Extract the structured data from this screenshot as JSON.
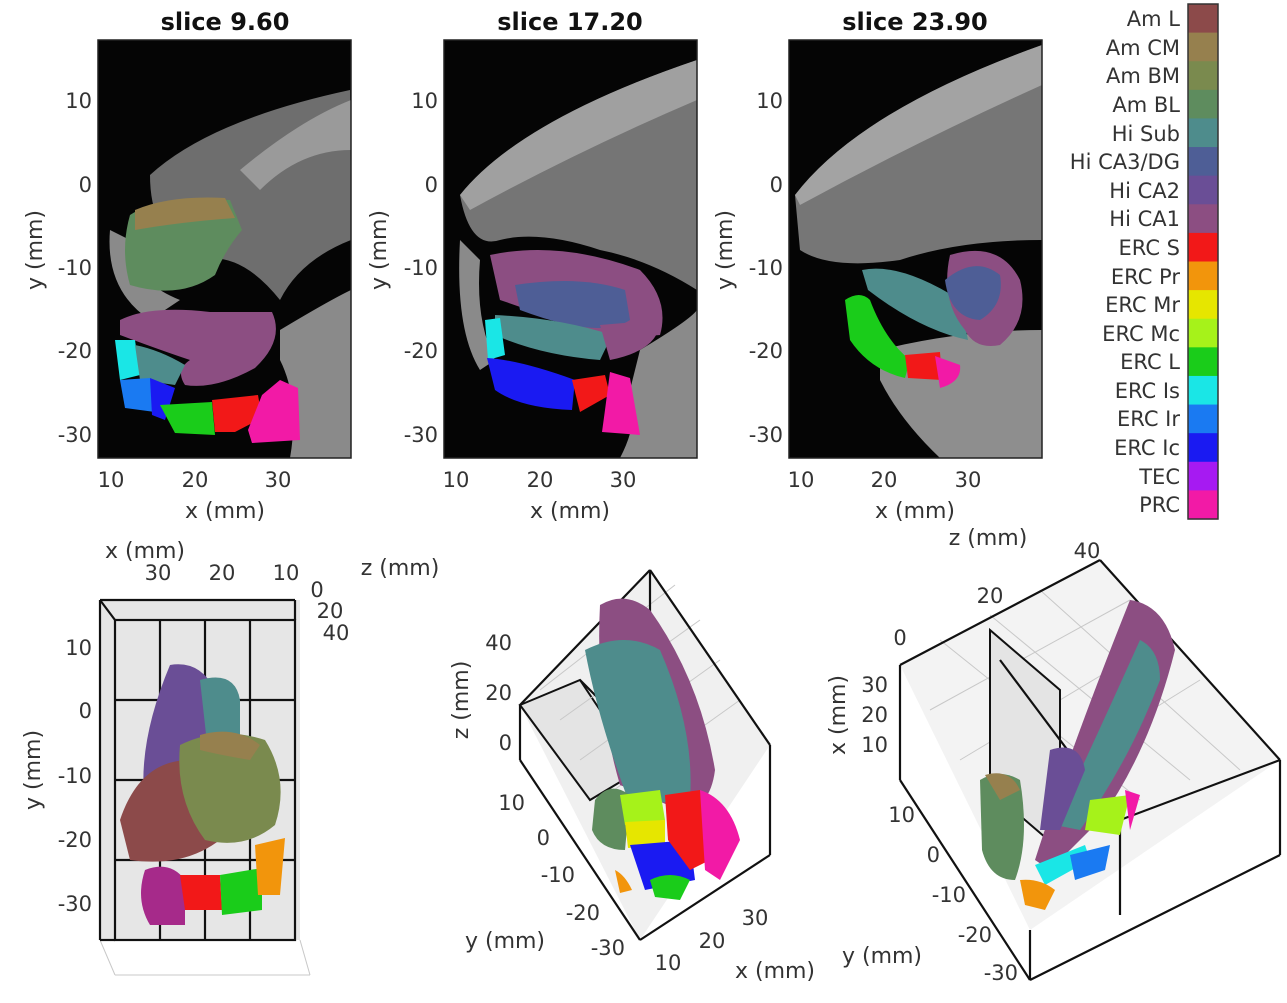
{
  "slice_panels": [
    {
      "title": "slice 9.60"
    },
    {
      "title": "slice 17.20"
    },
    {
      "title": "slice 23.90"
    }
  ],
  "slice_axes": {
    "x_label": "x (mm)",
    "y_label": "y (mm)",
    "x_ticks": [
      "10",
      "20",
      "30"
    ],
    "y_ticks": [
      "10",
      "0",
      "-10",
      "-20",
      "-30"
    ]
  },
  "colorbar": {
    "labels": [
      "Am L",
      "Am CM",
      "Am BM",
      "Am BL",
      "Hi Sub",
      "Hi CA3/DG",
      "Hi CA2",
      "Hi CA1",
      "ERC S",
      "ERC Pr",
      "ERC Mr",
      "ERC Mc",
      "ERC L",
      "ERC Is",
      "ERC Ir",
      "ERC Ic",
      "TEC",
      "PRC"
    ],
    "colors": [
      "#8c4a4a",
      "#96804e",
      "#7a8a4e",
      "#5e8c5e",
      "#4e8c8c",
      "#4e5e96",
      "#6a4e96",
      "#8c4e82",
      "#f21818",
      "#f2950c",
      "#e6e600",
      "#a6f21a",
      "#1acc1a",
      "#1ae6e6",
      "#1a7af2",
      "#1a1af2",
      "#a61af2",
      "#f21aa6"
    ]
  },
  "view3d_left": {
    "x_label": "x (mm)",
    "x_ticks": [
      "30",
      "20",
      "10"
    ],
    "z_label": "z (mm)",
    "z_ticks": [
      "0",
      "20",
      "40"
    ],
    "y_label": "y (mm)",
    "y_ticks": [
      "10",
      "0",
      "-10",
      "-20",
      "-30"
    ]
  },
  "view3d_mid": {
    "z_label": "z (mm)",
    "z_ticks": [
      "40",
      "20",
      "0"
    ],
    "y_label": "y (mm)",
    "y_ticks": [
      "10",
      "0",
      "-10",
      "-20",
      "-30"
    ],
    "x_label": "x (mm)",
    "x_ticks": [
      "10",
      "20",
      "30"
    ]
  },
  "view3d_right": {
    "z_label": "z (mm)",
    "z_ticks": [
      "0",
      "20",
      "40"
    ],
    "x_label": "x (mm)",
    "x_ticks": [
      "30",
      "20",
      "10"
    ],
    "y_label": "y (mm)",
    "y_ticks": [
      "10",
      "0",
      "-10",
      "-20",
      "-30"
    ]
  }
}
